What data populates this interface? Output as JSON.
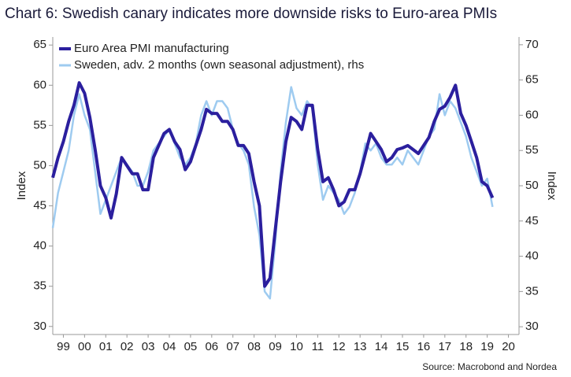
{
  "chart_data": {
    "type": "line",
    "title": "Chart 6: Swedish canary indicates more downside risks to Euro-area PMIs",
    "y_label": "Index",
    "y2_label": "Index",
    "source": "Source: Macrobond and Nordea",
    "x": [
      1999.0,
      1999.25,
      1999.5,
      1999.75,
      2000.0,
      2000.25,
      2000.5,
      2000.75,
      2001.0,
      2001.25,
      2001.5,
      2001.75,
      2002.0,
      2002.25,
      2002.5,
      2002.75,
      2003.0,
      2003.25,
      2003.5,
      2003.75,
      2004.0,
      2004.25,
      2004.5,
      2004.75,
      2005.0,
      2005.25,
      2005.5,
      2005.75,
      2006.0,
      2006.25,
      2006.5,
      2006.75,
      2007.0,
      2007.25,
      2007.5,
      2007.75,
      2008.0,
      2008.25,
      2008.5,
      2008.75,
      2009.0,
      2009.25,
      2009.5,
      2009.75,
      2010.0,
      2010.25,
      2010.5,
      2010.75,
      2011.0,
      2011.25,
      2011.5,
      2011.75,
      2012.0,
      2012.25,
      2012.5,
      2012.75,
      2013.0,
      2013.25,
      2013.5,
      2013.75,
      2014.0,
      2014.25,
      2014.5,
      2014.75,
      2015.0,
      2015.25,
      2015.5,
      2015.75,
      2016.0,
      2016.25,
      2016.5,
      2016.75,
      2017.0,
      2017.25,
      2017.5,
      2017.75,
      2018.0,
      2018.25,
      2018.5,
      2018.75,
      2019.0,
      2019.25,
      2019.5,
      2019.75
    ],
    "series": [
      {
        "name": "Euro Area PMI manufacturing",
        "color": "#2b1f9e",
        "axis": "y",
        "values": [
          48.5,
          51,
          53,
          55.5,
          57.5,
          60.3,
          59,
          56,
          52,
          47.5,
          46,
          43.5,
          46.5,
          51,
          50,
          49,
          49,
          47,
          47,
          51,
          52.5,
          54,
          54.5,
          53,
          52,
          49.5,
          50.5,
          52.5,
          54.5,
          57,
          56.5,
          56.5,
          55.5,
          55.5,
          54.5,
          52.5,
          52.5,
          51.5,
          48,
          45,
          35,
          36,
          42,
          48,
          53,
          56,
          55.5,
          54.5,
          57.5,
          57.5,
          52,
          48,
          48.5,
          47,
          45,
          45.5,
          47,
          47,
          49,
          51.5,
          54,
          53,
          52,
          50.5,
          51,
          52,
          52.2,
          52.5,
          52,
          51.5,
          52.5,
          53.5,
          55.5,
          57,
          57.4,
          58.5,
          60,
          56.5,
          55,
          53,
          51,
          48,
          47.5,
          46
        ]
      },
      {
        "name": "Sweden, adv. 2 months (own seasonal adjustment), rhs",
        "color": "#9ecbf0",
        "axis": "y2",
        "values": [
          44,
          49,
          52,
          55,
          60,
          63,
          60,
          58,
          52,
          46,
          48,
          50,
          52,
          54,
          53,
          52,
          50,
          50,
          52,
          55,
          56,
          57,
          58,
          56,
          54,
          53,
          54,
          56,
          60,
          62,
          60,
          62,
          62,
          61,
          58,
          56,
          55,
          53,
          47,
          43,
          35,
          34,
          42,
          52,
          59,
          64,
          61,
          60,
          62,
          61,
          53,
          48,
          50,
          49,
          48,
          46,
          47,
          49,
          52,
          56,
          55,
          56,
          54,
          53,
          53,
          54,
          53,
          55,
          54,
          53,
          55,
          57,
          58,
          63,
          60,
          62,
          61,
          59,
          57,
          54,
          52,
          50,
          51,
          47
        ]
      }
    ],
    "xlim": [
      1999,
      2021
    ],
    "xticks": [
      {
        "value": 1999.5,
        "label": "99"
      },
      {
        "value": 2000.5,
        "label": "00"
      },
      {
        "value": 2001.5,
        "label": "01"
      },
      {
        "value": 2002.5,
        "label": "02"
      },
      {
        "value": 2003.5,
        "label": "03"
      },
      {
        "value": 2004.5,
        "label": "04"
      },
      {
        "value": 2005.5,
        "label": "05"
      },
      {
        "value": 2006.5,
        "label": "06"
      },
      {
        "value": 2007.5,
        "label": "07"
      },
      {
        "value": 2008.5,
        "label": "08"
      },
      {
        "value": 2009.5,
        "label": "09"
      },
      {
        "value": 2010.5,
        "label": "10"
      },
      {
        "value": 2011.5,
        "label": "11"
      },
      {
        "value": 2012.5,
        "label": "12"
      },
      {
        "value": 2013.5,
        "label": "13"
      },
      {
        "value": 2014.5,
        "label": "14"
      },
      {
        "value": 2015.5,
        "label": "15"
      },
      {
        "value": 2016.5,
        "label": "16"
      },
      {
        "value": 2017.5,
        "label": "17"
      },
      {
        "value": 2018.5,
        "label": "18"
      },
      {
        "value": 2019.5,
        "label": "19"
      },
      {
        "value": 2020.5,
        "label": "20"
      }
    ],
    "ylim": [
      29,
      66
    ],
    "yticks": [
      30,
      35,
      40,
      45,
      50,
      55,
      60,
      65
    ],
    "y2lim": [
      28.9,
      71.1
    ],
    "y2ticks": [
      30,
      35,
      40,
      45,
      50,
      55,
      60,
      65,
      70
    ],
    "grid": false,
    "legend": "upper left"
  }
}
